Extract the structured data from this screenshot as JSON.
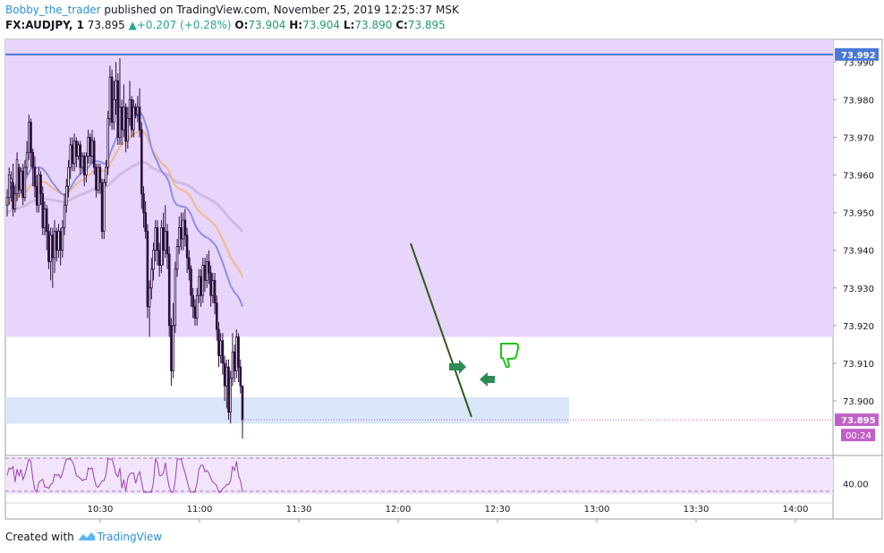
{
  "header": {
    "author": "Bobby_the_trader",
    "published_text": "published on TradingView.com, November 25, 2019 12:25:37 MSK",
    "symbol": "FX:AUDJPY, 1",
    "last": "73.895",
    "change": "+0.207 (+0.28%)",
    "o_label": "O:",
    "o_value": "73.904",
    "h_label": "H:",
    "h_value": "73.904",
    "l_label": "L:",
    "l_value": "73.890",
    "c_label": "C:",
    "c_value": "73.895"
  },
  "footer": {
    "created_with": "Created with",
    "brand": "TradingView"
  },
  "colors": {
    "candle": "#2a0f3e",
    "zone": "#e8d5fb",
    "support_zone": "#d6e4f8",
    "resistance_line": "#4a78d8",
    "ema_fast": "#8e8ee6",
    "ema_mid": "#f0b98c",
    "ema_slow": "#cbb6dc",
    "trendline": "#2e5a1c",
    "arrow": "#2e8b57",
    "thumb": "#22c21a",
    "price_tag": "#c060c8",
    "oscillator": "#9c3fb0"
  },
  "chart_data": {
    "type": "candlestick",
    "symbol": "FX:AUDJPY",
    "interval": "1",
    "ylim": [
      73.886,
      73.996
    ],
    "price_axis_labels": [
      "73.990",
      "73.980",
      "73.970",
      "73.960",
      "73.950",
      "73.940",
      "73.930",
      "73.920",
      "73.910",
      "73.900"
    ],
    "time_labels": [
      "10:30",
      "11:00",
      "11:30",
      "12:00",
      "12:30",
      "13:00",
      "13:30",
      "14:00"
    ],
    "resistance_level": "73.992",
    "current_price": "73.895",
    "countdown": "00:24",
    "zones": [
      {
        "type": "resistance",
        "from": 73.917,
        "to": 73.996
      },
      {
        "type": "support",
        "from": 73.894,
        "to": 73.901
      }
    ],
    "oscillator_label": "40.00",
    "candles": [
      [
        73.952,
        73.954,
        73.949,
        73.956
      ],
      [
        73.954,
        73.96,
        73.952,
        73.962
      ],
      [
        73.958,
        73.959,
        73.953,
        73.961
      ],
      [
        73.958,
        73.951,
        73.949,
        73.963
      ],
      [
        73.951,
        73.955,
        73.95,
        73.957
      ],
      [
        73.955,
        73.964,
        73.953,
        73.966
      ],
      [
        73.962,
        73.956,
        73.954,
        73.963
      ],
      [
        73.956,
        73.961,
        73.955,
        73.962
      ],
      [
        73.961,
        73.954,
        73.952,
        73.963
      ],
      [
        73.954,
        73.962,
        73.953,
        73.964
      ],
      [
        73.962,
        73.966,
        73.96,
        73.969
      ],
      [
        73.966,
        73.974,
        73.964,
        73.976
      ],
      [
        73.974,
        73.966,
        73.962,
        73.975
      ],
      [
        73.966,
        73.962,
        73.957,
        73.967
      ],
      [
        73.962,
        73.957,
        73.954,
        73.965
      ],
      [
        73.957,
        73.952,
        73.95,
        73.96
      ],
      [
        73.952,
        73.96,
        73.95,
        73.962
      ],
      [
        73.96,
        73.955,
        73.952,
        73.961
      ],
      [
        73.955,
        73.946,
        73.944,
        73.957
      ],
      [
        73.946,
        73.951,
        73.944,
        73.953
      ],
      [
        73.951,
        73.945,
        73.94,
        73.952
      ],
      [
        73.945,
        73.937,
        73.935,
        73.947
      ],
      [
        73.937,
        73.944,
        73.932,
        73.946
      ],
      [
        73.944,
        73.938,
        73.93,
        73.946
      ],
      [
        73.938,
        73.945,
        73.934,
        73.948
      ],
      [
        73.945,
        73.94,
        73.937,
        73.946
      ],
      [
        73.94,
        73.945,
        73.938,
        73.947
      ],
      [
        73.945,
        73.94,
        73.936,
        73.946
      ],
      [
        73.94,
        73.946,
        73.938,
        73.948
      ],
      [
        73.946,
        73.952,
        73.944,
        73.955
      ],
      [
        73.952,
        73.957,
        73.95,
        73.959
      ],
      [
        73.957,
        73.962,
        73.954,
        73.964
      ],
      [
        73.962,
        73.968,
        73.959,
        73.97
      ],
      [
        73.968,
        73.963,
        73.961,
        73.97
      ],
      [
        73.963,
        73.969,
        73.961,
        73.971
      ],
      [
        73.969,
        73.965,
        73.962,
        73.97
      ],
      [
        73.965,
        73.968,
        73.964,
        73.969
      ],
      [
        73.968,
        73.962,
        73.96,
        73.969
      ],
      [
        73.962,
        73.965,
        73.961,
        73.966
      ],
      [
        73.965,
        73.96,
        73.957,
        73.966
      ],
      [
        73.96,
        73.965,
        73.958,
        73.966
      ],
      [
        73.965,
        73.97,
        73.963,
        73.972
      ],
      [
        73.97,
        73.965,
        73.963,
        73.971
      ],
      [
        73.965,
        73.969,
        73.963,
        73.972
      ],
      [
        73.969,
        73.962,
        73.96,
        73.97
      ],
      [
        73.962,
        73.956,
        73.954,
        73.963
      ],
      [
        73.956,
        73.962,
        73.955,
        73.963
      ],
      [
        73.962,
        73.958,
        73.955,
        73.963
      ],
      [
        73.958,
        73.945,
        73.943,
        73.959
      ],
      [
        73.945,
        73.958,
        73.943,
        73.959
      ],
      [
        73.958,
        73.962,
        73.957,
        73.964
      ],
      [
        73.962,
        73.975,
        73.96,
        73.977
      ],
      [
        73.975,
        73.986,
        73.973,
        73.989
      ],
      [
        73.986,
        73.974,
        73.972,
        73.988
      ],
      [
        73.974,
        73.98,
        73.972,
        73.985
      ],
      [
        73.98,
        73.985,
        73.976,
        73.99
      ],
      [
        73.985,
        73.97,
        73.968,
        73.987
      ],
      [
        73.97,
        73.978,
        73.968,
        73.991
      ],
      [
        73.978,
        73.972,
        73.968,
        73.98
      ],
      [
        73.972,
        73.978,
        73.97,
        73.984
      ],
      [
        73.978,
        73.969,
        73.966,
        73.979
      ],
      [
        73.969,
        73.975,
        73.967,
        73.978
      ],
      [
        73.975,
        73.98,
        73.973,
        73.985
      ],
      [
        73.98,
        73.972,
        73.97,
        73.981
      ],
      [
        73.972,
        73.978,
        73.97,
        73.98
      ],
      [
        73.978,
        73.976,
        73.975,
        73.979
      ],
      [
        73.976,
        73.978,
        73.974,
        73.981
      ],
      [
        73.978,
        73.972,
        73.97,
        73.983
      ],
      [
        73.972,
        73.955,
        73.951,
        73.974
      ],
      [
        73.955,
        73.95,
        73.946,
        73.957
      ],
      [
        73.95,
        73.945,
        73.943,
        73.953
      ],
      [
        73.945,
        73.925,
        73.922,
        73.947
      ],
      [
        73.925,
        73.93,
        73.917,
        73.932
      ],
      [
        73.93,
        73.935,
        73.927,
        73.938
      ],
      [
        73.935,
        73.94,
        73.932,
        73.942
      ],
      [
        73.94,
        73.946,
        73.937,
        73.948
      ],
      [
        73.946,
        73.94,
        73.936,
        73.948
      ],
      [
        73.94,
        73.936,
        73.933,
        73.942
      ],
      [
        73.936,
        73.946,
        73.934,
        73.948
      ],
      [
        73.946,
        73.94,
        73.936,
        73.95
      ],
      [
        73.94,
        73.945,
        73.938,
        73.952
      ],
      [
        73.945,
        73.939,
        73.935,
        73.947
      ],
      [
        73.939,
        73.92,
        73.917,
        73.941
      ],
      [
        73.92,
        73.908,
        73.904,
        73.922
      ],
      [
        73.908,
        73.92,
        73.906,
        73.926
      ],
      [
        73.92,
        73.935,
        73.918,
        73.937
      ],
      [
        73.935,
        73.941,
        73.933,
        73.943
      ],
      [
        73.941,
        73.946,
        73.939,
        73.949
      ],
      [
        73.946,
        73.943,
        73.94,
        73.95
      ],
      [
        73.943,
        73.948,
        73.94,
        73.95
      ],
      [
        73.948,
        73.944,
        73.941,
        73.951
      ],
      [
        73.944,
        73.938,
        73.934,
        73.946
      ],
      [
        73.938,
        73.935,
        73.932,
        73.94
      ],
      [
        73.935,
        73.928,
        73.925,
        73.936
      ],
      [
        73.928,
        73.925,
        73.922,
        73.93
      ],
      [
        73.925,
        73.922,
        73.92,
        73.927
      ],
      [
        73.922,
        73.928,
        73.92,
        73.93
      ],
      [
        73.928,
        73.933,
        73.926,
        73.935
      ],
      [
        73.933,
        73.928,
        73.925,
        73.935
      ],
      [
        73.928,
        73.936,
        73.926,
        73.938
      ],
      [
        73.936,
        73.932,
        73.929,
        73.938
      ],
      [
        73.932,
        73.937,
        73.93,
        73.939
      ],
      [
        73.937,
        73.934,
        73.931,
        73.94
      ],
      [
        73.934,
        73.928,
        73.925,
        73.936
      ],
      [
        73.928,
        73.932,
        73.926,
        73.934
      ],
      [
        73.932,
        73.926,
        73.923,
        73.934
      ],
      [
        73.926,
        73.919,
        73.916,
        73.928
      ],
      [
        73.919,
        73.912,
        73.909,
        73.921
      ],
      [
        73.912,
        73.916,
        73.91,
        73.918
      ],
      [
        73.916,
        73.91,
        73.907,
        73.918
      ],
      [
        73.91,
        73.904,
        73.9,
        73.912
      ],
      [
        73.904,
        73.909,
        73.898,
        73.911
      ],
      [
        73.909,
        73.897,
        73.895,
        73.911
      ],
      [
        73.897,
        73.906,
        73.894,
        73.908
      ],
      [
        73.906,
        73.913,
        73.904,
        73.918
      ],
      [
        73.913,
        73.908,
        73.905,
        73.915
      ],
      [
        73.908,
        73.917,
        73.906,
        73.919
      ],
      [
        73.917,
        73.909,
        73.905,
        73.918
      ],
      [
        73.909,
        73.904,
        73.902,
        73.911
      ],
      [
        73.904,
        73.895,
        73.89,
        73.904
      ]
    ]
  }
}
